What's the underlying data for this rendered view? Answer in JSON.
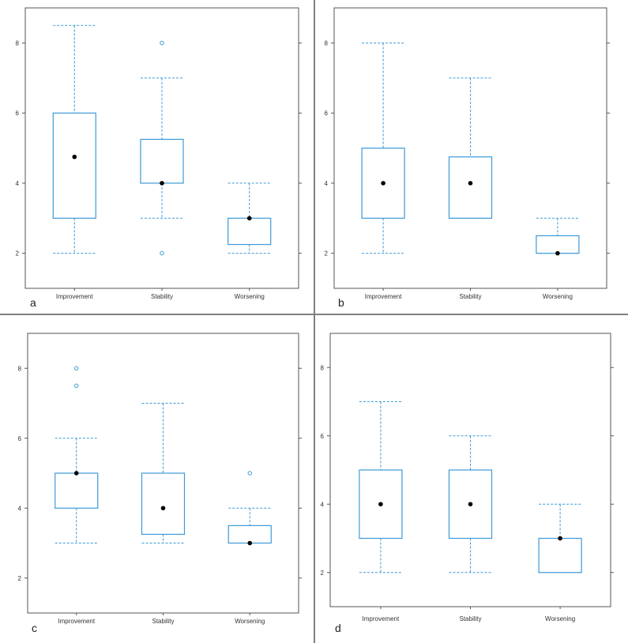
{
  "colors": {
    "box": "#3d9ad8",
    "median": "#000000",
    "frame": "#555555",
    "divider": "#808080"
  },
  "chart_data": [
    {
      "type": "box",
      "panel_label": "a",
      "categories": [
        "Improvement",
        "Stability",
        "Worsening"
      ],
      "yticks": [
        2,
        4,
        6,
        8
      ],
      "ylim": [
        1.0,
        9.0
      ],
      "boxes": [
        {
          "whisker_low": 2,
          "q1": 3,
          "median": 4.75,
          "q3": 6,
          "whisker_high": 8.5,
          "outliers": []
        },
        {
          "whisker_low": 3,
          "q1": 4,
          "median": 4,
          "q3": 5.25,
          "whisker_high": 7,
          "outliers": [
            8,
            2
          ]
        },
        {
          "whisker_low": 2,
          "q1": 2.25,
          "median": 3,
          "q3": 3,
          "whisker_high": 4,
          "outliers": []
        }
      ]
    },
    {
      "type": "box",
      "panel_label": "b",
      "categories": [
        "Improvement",
        "Stability",
        "Worsening"
      ],
      "yticks": [
        2,
        4,
        6,
        8
      ],
      "ylim": [
        1.0,
        9.0
      ],
      "boxes": [
        {
          "whisker_low": 2,
          "q1": 3,
          "median": 4,
          "q3": 5,
          "whisker_high": 8,
          "outliers": []
        },
        {
          "whisker_low": 3,
          "q1": 3,
          "median": 4,
          "q3": 4.75,
          "whisker_high": 7,
          "outliers": []
        },
        {
          "whisker_low": 2,
          "q1": 2,
          "median": 2,
          "q3": 2.5,
          "whisker_high": 3,
          "outliers": []
        }
      ]
    },
    {
      "type": "box",
      "panel_label": "c",
      "categories": [
        "Improvement",
        "Stability",
        "Worsening"
      ],
      "yticks": [
        2,
        4,
        6,
        8
      ],
      "ylim": [
        1.0,
        9.0
      ],
      "boxes": [
        {
          "whisker_low": 3,
          "q1": 4,
          "median": 5,
          "q3": 5,
          "whisker_high": 6,
          "outliers": [
            8,
            7.5
          ]
        },
        {
          "whisker_low": 3,
          "q1": 3.25,
          "median": 4,
          "q3": 5,
          "whisker_high": 7,
          "outliers": []
        },
        {
          "whisker_low": 3,
          "q1": 3,
          "median": 3,
          "q3": 3.5,
          "whisker_high": 4,
          "outliers": [
            5
          ]
        }
      ]
    },
    {
      "type": "box",
      "panel_label": "d",
      "categories": [
        "Improvement",
        "Stability",
        "Worsening"
      ],
      "yticks": [
        2,
        4,
        6,
        8
      ],
      "ylim": [
        1.0,
        9.0
      ],
      "boxes": [
        {
          "whisker_low": 2,
          "q1": 3,
          "median": 4,
          "q3": 5,
          "whisker_high": 7,
          "outliers": []
        },
        {
          "whisker_low": 2,
          "q1": 3,
          "median": 4,
          "q3": 5,
          "whisker_high": 6,
          "outliers": []
        },
        {
          "whisker_low": 2,
          "q1": 2,
          "median": 3,
          "q3": 3,
          "whisker_high": 4,
          "outliers": []
        }
      ]
    }
  ]
}
